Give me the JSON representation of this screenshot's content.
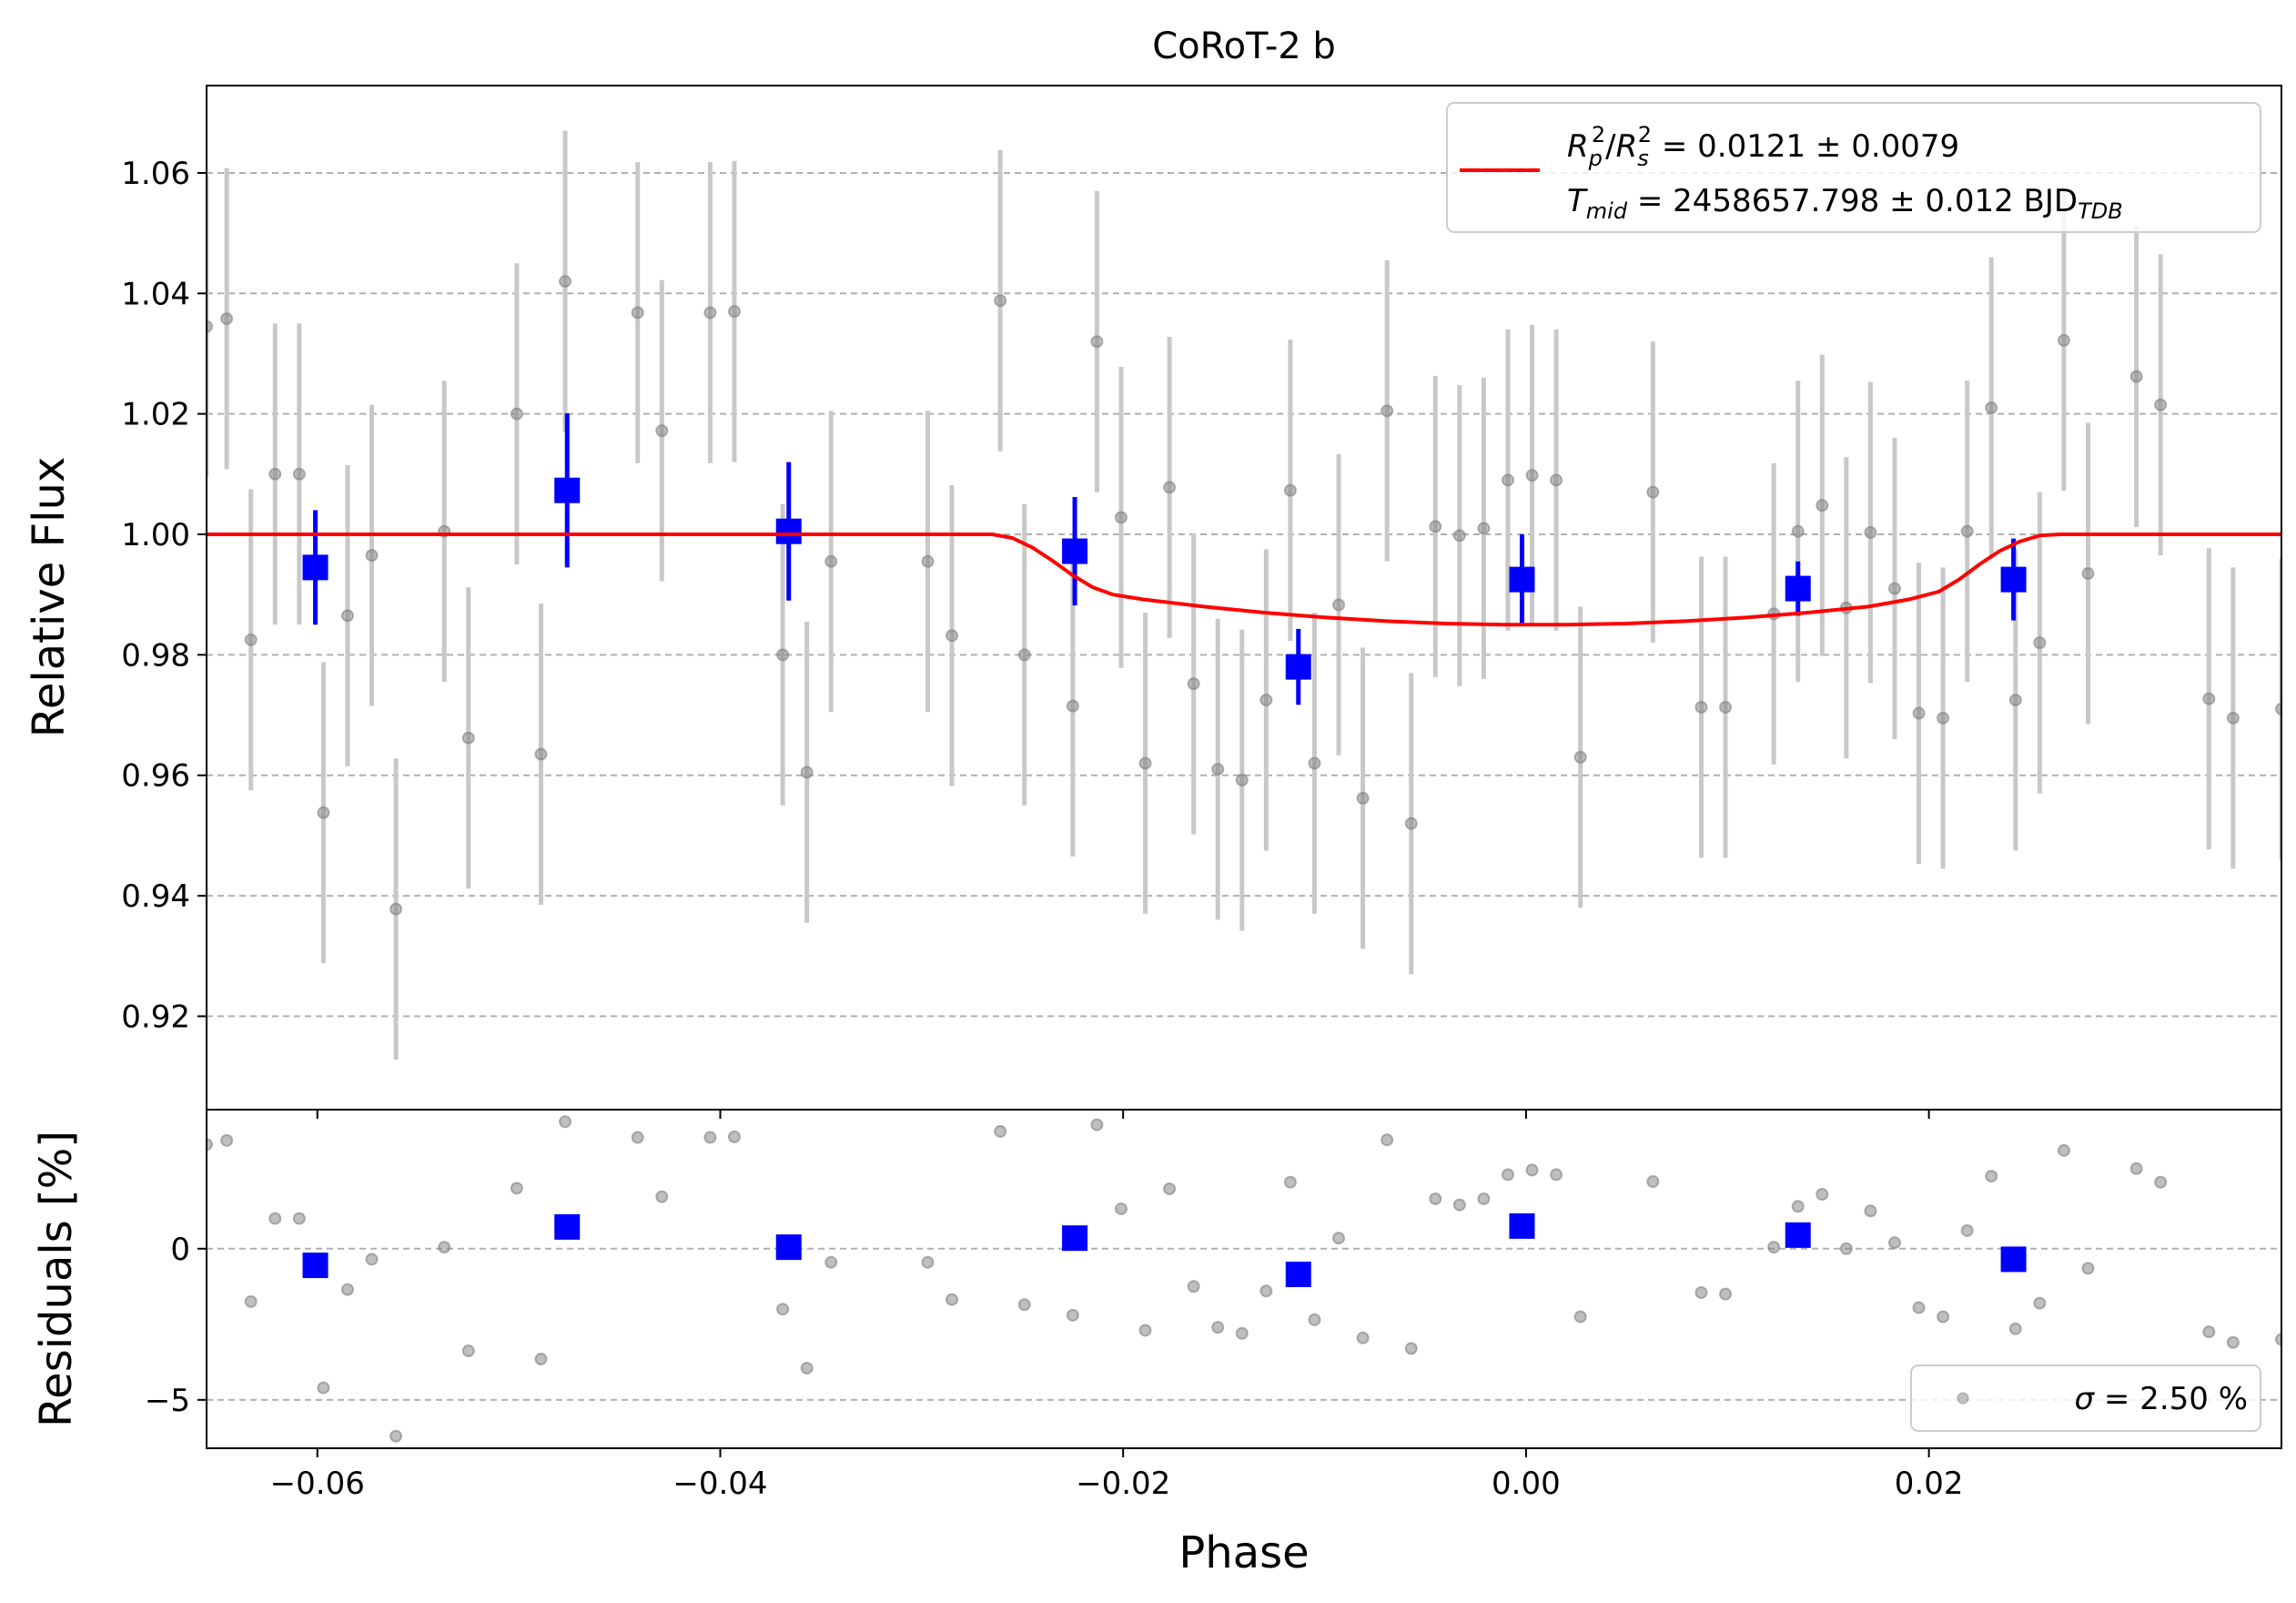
{
  "chart_data": [
    {
      "type": "scatter",
      "panel": "flux",
      "title": "CoRoT-2 b",
      "xlabel": "",
      "ylabel": "Relative Flux",
      "xlim": [
        -0.0655,
        0.0375
      ],
      "ylim": [
        0.9045,
        1.0745
      ],
      "xticks": [
        -0.06,
        -0.04,
        -0.02,
        0.0,
        0.02
      ],
      "xtick_labels": [
        "",
        "",
        "",
        "",
        ""
      ],
      "yticks": [
        0.92,
        0.94,
        0.96,
        0.98,
        1.0,
        1.02,
        1.04,
        1.06
      ],
      "ytick_labels": [
        "0.92",
        "0.94",
        "0.96",
        "0.98",
        "1.00",
        "1.02",
        "1.04",
        "1.06"
      ],
      "grid": "horizontal-dashed",
      "legend": {
        "placement": "upper-right",
        "entries": [
          {
            "line1": {
              "sym1": "R",
              "sub1": "p",
              "sup1": "2",
              "slash": "/",
              "sym2": "R",
              "sub2": "s",
              "sup2": "2",
              "text": " = 0.0121 ± 0.0079"
            },
            "line2": {
              "sym": "T",
              "sub": "mid",
              "text": " = 2458657.798 ± 0.012 BJD",
              "tail_sub": "TDB"
            }
          }
        ]
      },
      "series": [
        {
          "kind": "points",
          "color": "#808080",
          "errorbar_color": "#c8c8c8",
          "yerr": 0.025,
          "x": [
            -0.0655,
            -0.0645,
            -0.0633,
            -0.0621,
            -0.0609,
            -0.0597,
            -0.0585,
            -0.0573,
            -0.0561,
            -0.0537,
            -0.0525,
            -0.0501,
            -0.0489,
            -0.0477,
            -0.0441,
            -0.0429,
            -0.0405,
            -0.0393,
            -0.0369,
            -0.0357,
            -0.0345,
            -0.0297,
            -0.0285,
            -0.0261,
            -0.0249,
            -0.0225,
            -0.0213,
            -0.0201,
            -0.0189,
            -0.0177,
            -0.0165,
            -0.0153,
            -0.0141,
            -0.0129,
            -0.0117,
            -0.0105,
            -0.0093,
            -0.0081,
            -0.0069,
            -0.0057,
            -0.0045,
            -0.0033,
            -0.0021,
            -0.0009,
            0.0003,
            0.0015,
            0.0027,
            0.0063,
            0.0087,
            0.0099,
            0.0123,
            0.0135,
            0.0147,
            0.0159,
            0.0171,
            0.0183,
            0.0195,
            0.0207,
            0.0219,
            0.0231,
            0.0243,
            0.0255,
            0.0267,
            0.0279,
            0.0303,
            0.0315,
            0.0339,
            0.0351,
            0.0375
          ],
          "y": [
            1.0345,
            1.0358,
            0.9825,
            1.01,
            1.01,
            0.9538,
            0.9865,
            0.9965,
            0.9378,
            1.0005,
            0.9662,
            1.02,
            0.9635,
            1.042,
            1.0368,
            1.0172,
            1.0368,
            1.037,
            0.98,
            0.9605,
            0.9955,
            0.9955,
            0.9832,
            1.0388,
            0.98,
            0.9715,
            1.032,
            1.0028,
            0.962,
            1.0078,
            0.9752,
            0.961,
            0.9592,
            0.9725,
            1.0073,
            0.962,
            0.9883,
            0.9562,
            1.0205,
            0.952,
            1.0013,
            0.9998,
            1.001,
            1.009,
            1.0098,
            1.009,
            0.963,
            1.007,
            0.9713,
            0.9713,
            0.9868,
            1.0005,
            1.0048,
            0.9878,
            1.0003,
            0.991,
            0.9703,
            0.9695,
            1.0005,
            1.021,
            0.9725,
            0.982,
            1.0322,
            0.9935,
            1.0262,
            1.0215,
            0.9727,
            0.9695,
            0.971
          ]
        },
        {
          "kind": "binned",
          "color": "#0000ff",
          "x": [
            -0.0601,
            -0.0476,
            -0.0366,
            -0.0224,
            -0.0113,
            -0.0002,
            0.0135,
            0.0242
          ],
          "y": [
            0.9945,
            1.0073,
            1.0005,
            0.9972,
            0.978,
            0.9925,
            0.991,
            0.9925
          ],
          "yerr": [
            0.0095,
            0.0128,
            0.0115,
            0.009,
            0.0063,
            0.0075,
            0.0045,
            0.0068
          ]
        },
        {
          "kind": "model-line",
          "color": "#ff0000",
          "x": [
            -0.0655,
            -0.0265,
            -0.0255,
            -0.0245,
            -0.0235,
            -0.0225,
            -0.0215,
            -0.0205,
            -0.019,
            -0.016,
            -0.013,
            -0.01,
            -0.007,
            -0.004,
            -0.001,
            0.002,
            0.005,
            0.008,
            0.011,
            0.014,
            0.017,
            0.019,
            0.0205,
            0.0215,
            0.0225,
            0.0235,
            0.0245,
            0.0255,
            0.0265,
            0.0375
          ],
          "y": [
            1.0,
            1.0,
            0.9994,
            0.9978,
            0.9956,
            0.9932,
            0.9912,
            0.99,
            0.9892,
            0.988,
            0.987,
            0.9862,
            0.9856,
            0.9852,
            0.985,
            0.985,
            0.9852,
            0.9856,
            0.9862,
            0.987,
            0.988,
            0.9892,
            0.9905,
            0.9925,
            0.995,
            0.9972,
            0.9988,
            0.9998,
            1.0,
            1.0
          ]
        }
      ]
    },
    {
      "type": "scatter",
      "panel": "residuals",
      "title": "",
      "xlabel": "Phase",
      "ylabel": "Residuals [%]",
      "xlim": [
        -0.0655,
        0.0375
      ],
      "ylim": [
        -6.6,
        4.6
      ],
      "xticks": [
        -0.06,
        -0.04,
        -0.02,
        0.0,
        0.02
      ],
      "xtick_labels": [
        "−0.06",
        "−0.04",
        "−0.02",
        "0.00",
        "0.02"
      ],
      "yticks": [
        -5,
        0
      ],
      "ytick_labels": [
        "−5",
        "0"
      ],
      "grid": "horizontal-dashed",
      "legend": {
        "placement": "lower-right",
        "entries": [
          {
            "sym": "σ",
            "text": " = 2.50 %"
          }
        ]
      },
      "series": [
        {
          "kind": "points",
          "color": "#808080",
          "x": [
            -0.0655,
            -0.0645,
            -0.0633,
            -0.0621,
            -0.0609,
            -0.0597,
            -0.0585,
            -0.0573,
            -0.0561,
            -0.0537,
            -0.0525,
            -0.0501,
            -0.0489,
            -0.0477,
            -0.0441,
            -0.0429,
            -0.0405,
            -0.0393,
            -0.0369,
            -0.0357,
            -0.0345,
            -0.0297,
            -0.0285,
            -0.0261,
            -0.0249,
            -0.0225,
            -0.0213,
            -0.0201,
            -0.0189,
            -0.0177,
            -0.0165,
            -0.0153,
            -0.0141,
            -0.0129,
            -0.0117,
            -0.0105,
            -0.0093,
            -0.0081,
            -0.0069,
            -0.0057,
            -0.0045,
            -0.0033,
            -0.0021,
            -0.0009,
            0.0003,
            0.0015,
            0.0027,
            0.0063,
            0.0087,
            0.0099,
            0.0123,
            0.0135,
            0.0147,
            0.0159,
            0.0171,
            0.0183,
            0.0195,
            0.0207,
            0.0219,
            0.0231,
            0.0243,
            0.0255,
            0.0267,
            0.0279,
            0.0303,
            0.0315,
            0.0339,
            0.0351,
            0.0375
          ],
          "y": [
            3.45,
            3.58,
            -1.75,
            1.0,
            1.0,
            -4.6,
            -1.35,
            -0.35,
            -6.2,
            0.05,
            -3.38,
            2.0,
            -3.65,
            4.2,
            3.68,
            1.72,
            3.68,
            3.7,
            -2.0,
            -3.95,
            -0.45,
            -0.45,
            -1.68,
            3.88,
            -1.85,
            -2.2,
            4.1,
            1.32,
            -2.7,
            1.98,
            -1.25,
            -2.6,
            -2.8,
            -1.4,
            2.2,
            -2.35,
            0.35,
            -2.95,
            3.6,
            -3.3,
            1.65,
            1.45,
            1.65,
            2.45,
            2.6,
            2.45,
            -2.25,
            2.22,
            -1.45,
            -1.5,
            0.05,
            1.4,
            1.8,
            0.0,
            1.25,
            0.2,
            -1.95,
            -2.25,
            0.6,
            2.4,
            -2.65,
            -1.8,
            3.25,
            -0.65,
            2.65,
            2.2,
            -2.75,
            -3.1,
            -3.0
          ]
        },
        {
          "kind": "binned",
          "color": "#0000ff",
          "x": [
            -0.0601,
            -0.0476,
            -0.0366,
            -0.0224,
            -0.0113,
            -0.0002,
            0.0135,
            0.0242
          ],
          "y": [
            -0.55,
            0.72,
            0.05,
            0.35,
            -0.85,
            0.75,
            0.45,
            -0.35
          ]
        }
      ]
    }
  ]
}
